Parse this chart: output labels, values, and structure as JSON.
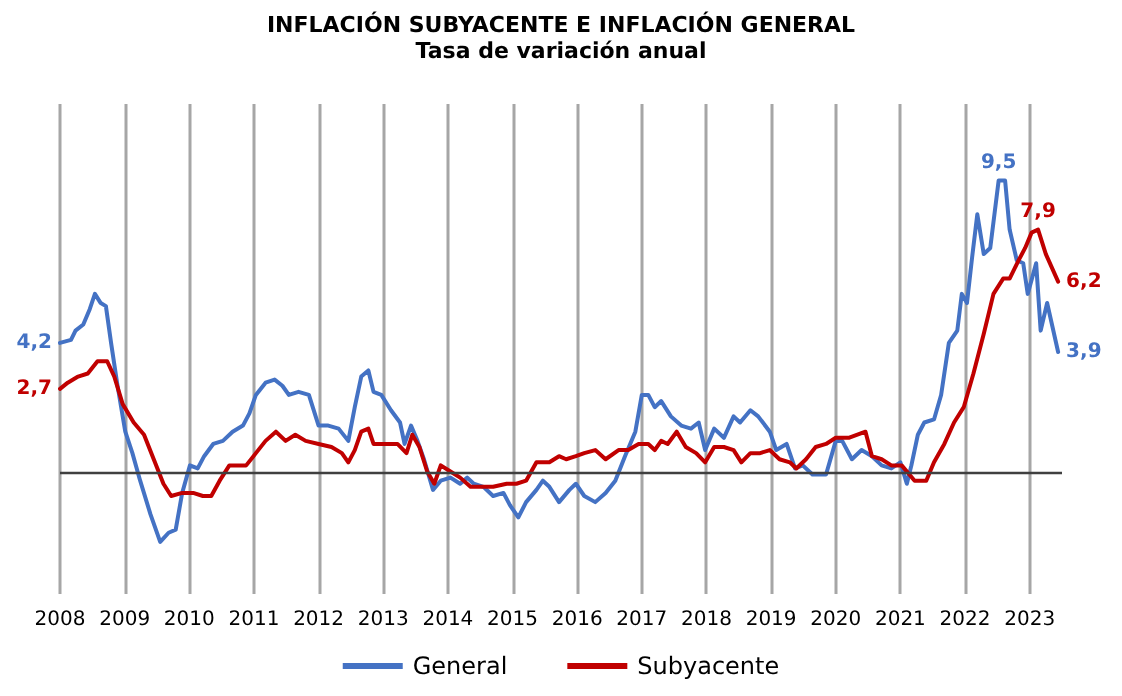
{
  "chart_data": {
    "type": "line",
    "title": "INFLACIÓN SUBYACENTE E INFLACIÓN GENERAL",
    "subtitle": "Tasa de variación anual",
    "xlim": [
      2008,
      2023.5
    ],
    "xticks": [
      2008,
      2009,
      2010,
      2011,
      2012,
      2013,
      2014,
      2015,
      2016,
      2017,
      2018,
      2019,
      2020,
      2021,
      2022,
      2023
    ],
    "ylim": [
      -4,
      12
    ],
    "tick_labels": "x",
    "grid": "x",
    "legend": "bottom",
    "marker": "none",
    "line_style": "solid",
    "ref_lines": [
      {
        "axis": "y",
        "value": 0,
        "color": "#404040"
      }
    ],
    "series": [
      {
        "name": "General",
        "color": "#4472c4",
        "x": [
          2008.0,
          2008.17,
          2008.24,
          2008.36,
          2008.46,
          2008.54,
          2008.63,
          2008.71,
          2008.79,
          2008.89,
          2009.01,
          2009.12,
          2009.24,
          2009.4,
          2009.55,
          2009.68,
          2009.79,
          2009.89,
          2010.01,
          2010.13,
          2010.23,
          2010.37,
          2010.52,
          2010.67,
          2010.83,
          2010.93,
          2011.03,
          2011.18,
          2011.32,
          2011.44,
          2011.54,
          2011.69,
          2011.85,
          2012.0,
          2012.15,
          2012.31,
          2012.46,
          2012.56,
          2012.66,
          2012.77,
          2012.85,
          2012.97,
          2013.12,
          2013.26,
          2013.33,
          2013.43,
          2013.53,
          2013.63,
          2013.77,
          2013.89,
          2014.04,
          2014.19,
          2014.3,
          2014.4,
          2014.55,
          2014.7,
          2014.86,
          2014.96,
          2015.09,
          2015.21,
          2015.37,
          2015.47,
          2015.57,
          2015.72,
          2015.88,
          2015.98,
          2016.11,
          2016.28,
          2016.44,
          2016.59,
          2016.74,
          2016.9,
          2017.0,
          2017.1,
          2017.2,
          2017.3,
          2017.45,
          2017.61,
          2017.76,
          2017.88,
          2017.98,
          2018.12,
          2018.27,
          2018.42,
          2018.52,
          2018.68,
          2018.8,
          2018.98,
          2019.08,
          2019.24,
          2019.37,
          2019.49,
          2019.64,
          2019.85,
          2020.0,
          2020.1,
          2020.25,
          2020.4,
          2020.56,
          2020.71,
          2020.86,
          2021.0,
          2021.1,
          2021.17,
          2021.27,
          2021.37,
          2021.52,
          2021.63,
          2021.75,
          2021.88,
          2021.95,
          2022.03,
          2022.11,
          2022.19,
          2022.29,
          2022.39,
          2022.52,
          2022.62,
          2022.69,
          2022.8,
          2022.9,
          2022.97,
          2023.1,
          2023.17,
          2023.27,
          2023.44
        ],
        "values": [
          4.2,
          4.3,
          4.6,
          4.8,
          5.3,
          5.8,
          5.5,
          5.4,
          4.2,
          2.8,
          1.3,
          0.6,
          -0.3,
          -1.4,
          -2.3,
          -2.0,
          -1.9,
          -0.7,
          0.2,
          0.1,
          0.5,
          0.9,
          1.0,
          1.3,
          1.5,
          1.9,
          2.5,
          2.9,
          3.0,
          2.8,
          2.5,
          2.6,
          2.5,
          1.5,
          1.5,
          1.4,
          1.0,
          2.1,
          3.1,
          3.3,
          2.6,
          2.5,
          2.0,
          1.6,
          0.9,
          1.5,
          1.0,
          0.4,
          -0.6,
          -0.3,
          -0.2,
          -0.4,
          -0.2,
          -0.4,
          -0.5,
          -0.8,
          -0.7,
          -1.1,
          -1.5,
          -1.0,
          -0.6,
          -0.3,
          -0.5,
          -1.0,
          -0.6,
          -0.4,
          -0.8,
          -1.0,
          -0.7,
          -0.3,
          0.5,
          1.3,
          2.5,
          2.5,
          2.1,
          2.3,
          1.8,
          1.5,
          1.4,
          1.6,
          0.7,
          1.4,
          1.1,
          1.8,
          1.6,
          2.0,
          1.8,
          1.3,
          0.7,
          0.9,
          0.1,
          0.2,
          -0.1,
          -0.1,
          1.0,
          1.0,
          0.4,
          0.7,
          0.5,
          0.2,
          0.1,
          0.3,
          -0.4,
          0.2,
          1.2,
          1.6,
          1.7,
          2.5,
          4.2,
          4.6,
          5.8,
          5.5,
          7.0,
          8.4,
          7.1,
          7.3,
          9.5,
          9.5,
          7.9,
          6.9,
          6.8,
          5.8,
          6.8,
          4.6,
          5.5,
          3.9
        ],
        "value_labels": [
          "4,2",
          null,
          null,
          null,
          null,
          null,
          null,
          null,
          null,
          null,
          null,
          null,
          null,
          null,
          null,
          null,
          null,
          null,
          null,
          null,
          null,
          null,
          null,
          null,
          null,
          null,
          null,
          null,
          null,
          null,
          null,
          null,
          null,
          null,
          null,
          null,
          null,
          null,
          null,
          null,
          null,
          null,
          null,
          null,
          null,
          null,
          null,
          null,
          null,
          null,
          null,
          null,
          null,
          null,
          null,
          null,
          null,
          null,
          null,
          null,
          null,
          null,
          null,
          null,
          null,
          null,
          null,
          null,
          null,
          null,
          null,
          null,
          null,
          null,
          null,
          null,
          null,
          null,
          null,
          null,
          null,
          null,
          null,
          null,
          null,
          null,
          null,
          null,
          null,
          null,
          null,
          null,
          null,
          null,
          null,
          null,
          null,
          null,
          null,
          null,
          null,
          null,
          null,
          null,
          null,
          null,
          null,
          null,
          null,
          null,
          null,
          null,
          null,
          null,
          null,
          null,
          "9,5",
          null,
          null,
          null,
          null,
          null,
          null,
          null,
          null,
          "3,9"
        ]
      },
      {
        "name": "Subyacente",
        "color": "#c00000",
        "x": [
          2008.0,
          2008.12,
          2008.28,
          2008.43,
          2008.58,
          2008.73,
          2008.84,
          2008.97,
          2009.14,
          2009.3,
          2009.45,
          2009.6,
          2009.72,
          2009.89,
          2010.06,
          2010.21,
          2010.34,
          2010.47,
          2010.62,
          2010.88,
          2011.03,
          2011.18,
          2011.34,
          2011.49,
          2011.64,
          2011.8,
          2012.0,
          2012.2,
          2012.36,
          2012.46,
          2012.56,
          2012.66,
          2012.77,
          2012.85,
          2013.02,
          2013.22,
          2013.36,
          2013.45,
          2013.56,
          2013.68,
          2013.79,
          2013.89,
          2014.04,
          2014.19,
          2014.35,
          2014.5,
          2014.7,
          2014.91,
          2015.06,
          2015.21,
          2015.37,
          2015.57,
          2015.72,
          2015.83,
          2015.98,
          2016.11,
          2016.28,
          2016.44,
          2016.64,
          2016.79,
          2016.95,
          2017.1,
          2017.2,
          2017.3,
          2017.4,
          2017.54,
          2017.68,
          2017.84,
          2017.98,
          2018.12,
          2018.27,
          2018.42,
          2018.54,
          2018.68,
          2018.83,
          2018.98,
          2019.13,
          2019.29,
          2019.39,
          2019.54,
          2019.69,
          2019.85,
          2020.0,
          2020.2,
          2020.46,
          2020.56,
          2020.71,
          2020.86,
          2021.02,
          2021.22,
          2021.4,
          2021.52,
          2021.68,
          2021.83,
          2021.98,
          2022.13,
          2022.29,
          2022.44,
          2022.59,
          2022.69,
          2022.83,
          2022.93,
          2023.03,
          2023.13,
          2023.25,
          2023.44
        ],
        "values": [
          2.7,
          2.9,
          3.1,
          3.2,
          3.6,
          3.6,
          3.1,
          2.2,
          1.6,
          1.2,
          0.4,
          -0.4,
          -0.8,
          -0.7,
          -0.7,
          -0.8,
          -0.8,
          -0.3,
          0.2,
          0.2,
          0.6,
          1.0,
          1.3,
          1.0,
          1.2,
          1.0,
          0.9,
          0.8,
          0.6,
          0.3,
          0.7,
          1.3,
          1.4,
          0.9,
          0.9,
          0.9,
          0.6,
          1.2,
          0.8,
          0.0,
          -0.4,
          0.2,
          0.0,
          -0.2,
          -0.5,
          -0.5,
          -0.5,
          -0.4,
          -0.4,
          -0.3,
          0.3,
          0.3,
          0.5,
          0.4,
          0.5,
          0.6,
          0.7,
          0.4,
          0.7,
          0.7,
          0.9,
          0.9,
          0.7,
          1.0,
          0.9,
          1.3,
          0.8,
          0.6,
          0.3,
          0.8,
          0.8,
          0.7,
          0.3,
          0.6,
          0.6,
          0.7,
          0.4,
          0.3,
          0.1,
          0.4,
          0.8,
          0.9,
          1.1,
          1.1,
          1.3,
          0.5,
          0.4,
          0.2,
          0.2,
          -0.3,
          -0.3,
          0.3,
          0.9,
          1.6,
          2.1,
          3.2,
          4.5,
          5.8,
          6.3,
          6.3,
          6.9,
          7.3,
          7.8,
          7.9,
          7.1,
          6.2
        ],
        "value_labels": [
          "2,7",
          null,
          null,
          null,
          null,
          null,
          null,
          null,
          null,
          null,
          null,
          null,
          null,
          null,
          null,
          null,
          null,
          null,
          null,
          null,
          null,
          null,
          null,
          null,
          null,
          null,
          null,
          null,
          null,
          null,
          null,
          null,
          null,
          null,
          null,
          null,
          null,
          null,
          null,
          null,
          null,
          null,
          null,
          null,
          null,
          null,
          null,
          null,
          null,
          null,
          null,
          null,
          null,
          null,
          null,
          null,
          null,
          null,
          null,
          null,
          null,
          null,
          null,
          null,
          null,
          null,
          null,
          null,
          null,
          null,
          null,
          null,
          null,
          null,
          null,
          null,
          null,
          null,
          null,
          null,
          null,
          null,
          null,
          null,
          null,
          null,
          null,
          null,
          null,
          null,
          null,
          null,
          null,
          null,
          null,
          null,
          null,
          null,
          null,
          null,
          null,
          null,
          null,
          "7,9",
          null,
          "6,2"
        ]
      }
    ]
  }
}
